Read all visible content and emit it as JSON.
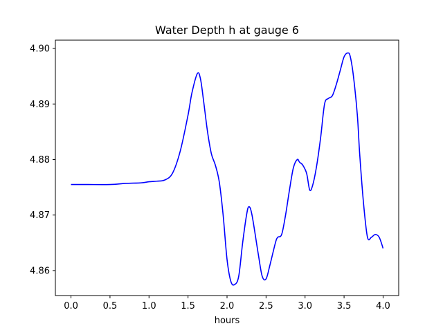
{
  "chart_data": {
    "type": "line",
    "title": "Water Depth h at gauge 6",
    "xlabel": "hours",
    "ylabel": "",
    "xlim": [
      -0.2,
      4.2
    ],
    "ylim": [
      4.8555,
      4.9015
    ],
    "xticks": [
      0.0,
      0.5,
      1.0,
      1.5,
      2.0,
      2.5,
      3.0,
      3.5,
      4.0
    ],
    "xtick_labels": [
      "0.0",
      "0.5",
      "1.0",
      "1.5",
      "2.0",
      "2.5",
      "3.0",
      "3.5",
      "4.0"
    ],
    "yticks": [
      4.86,
      4.87,
      4.88,
      4.89,
      4.9
    ],
    "ytick_labels": [
      "4.86",
      "4.87",
      "4.88",
      "4.89",
      "4.90"
    ],
    "grid": false,
    "line_color": "#0000ff",
    "series": [
      {
        "x": [
          0.0,
          0.2,
          0.5,
          0.7,
          0.9,
          1.0,
          1.1,
          1.2,
          1.3,
          1.4,
          1.5,
          1.55,
          1.62,
          1.66,
          1.7,
          1.75,
          1.8,
          1.85,
          1.9,
          1.95,
          2.0,
          2.05,
          2.1,
          2.15,
          2.2,
          2.25,
          2.28,
          2.32,
          2.4,
          2.45,
          2.5,
          2.55,
          2.62,
          2.65,
          2.7,
          2.75,
          2.8,
          2.85,
          2.9,
          2.93,
          2.97,
          3.02,
          3.06,
          3.1,
          3.15,
          3.2,
          3.25,
          3.3,
          3.35,
          3.4,
          3.45,
          3.5,
          3.55,
          3.58,
          3.62,
          3.67,
          3.7,
          3.75,
          3.8,
          3.85,
          3.9,
          3.95,
          4.0
        ],
        "y": [
          4.8755,
          4.8755,
          4.8755,
          4.8757,
          4.8758,
          4.876,
          4.8761,
          4.8763,
          4.8775,
          4.8815,
          4.888,
          4.892,
          4.8955,
          4.8945,
          4.8905,
          4.885,
          4.881,
          4.879,
          4.876,
          4.87,
          4.862,
          4.858,
          4.8575,
          4.859,
          4.865,
          4.87,
          4.8715,
          4.87,
          4.863,
          4.859,
          4.8585,
          4.861,
          4.865,
          4.866,
          4.8665,
          4.87,
          4.8745,
          4.8785,
          4.88,
          4.8795,
          4.879,
          4.8775,
          4.8745,
          4.8755,
          4.879,
          4.884,
          4.89,
          4.891,
          4.8915,
          4.8935,
          4.896,
          4.8985,
          4.8992,
          4.8985,
          4.895,
          4.888,
          4.881,
          4.872,
          4.866,
          4.866,
          4.8665,
          4.866,
          4.864
        ]
      }
    ]
  }
}
